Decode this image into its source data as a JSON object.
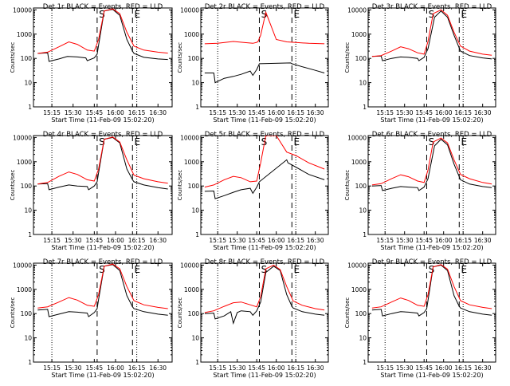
{
  "figure": {
    "xlabel": "Start Time (11-Feb-09 15:02:20)",
    "ylabel": "Counts/sec"
  },
  "colors": {
    "events": "#000000",
    "lld": "#ff0000",
    "axis": "#000000"
  },
  "chart_data": [
    {
      "type": "line",
      "title": "Det 1r BLACK = Events, RED = LLD",
      "xlabel": "Start Time (11-Feb-09 15:02:20)",
      "ylabel": "Counts/sec",
      "x_ticks": [
        "15:15",
        "15:30",
        "15:45",
        "16:00",
        "16:15",
        "16:30"
      ],
      "y_ticks": [
        "1",
        "10",
        "100",
        "1000",
        "10000"
      ],
      "ylim": [
        1,
        12000
      ],
      "log_y": true,
      "markers": [
        "S",
        "E"
      ],
      "series": [
        {
          "name": "Events",
          "x": [
            "15:05",
            "15:12",
            "15:13",
            "15:20",
            "15:26",
            "15:33",
            "15:39",
            "15:40",
            "15:45",
            "15:47",
            "15:48",
            "15:52",
            "15:58",
            "16:03",
            "16:08",
            "16:12",
            "16:13",
            "16:20",
            "16:30",
            "16:37"
          ],
          "y": [
            160,
            170,
            75,
            95,
            120,
            115,
            105,
            80,
            105,
            150,
            350,
            9000,
            10500,
            6000,
            600,
            200,
            160,
            110,
            95,
            90
          ]
        },
        {
          "name": "LLD",
          "x": [
            "15:05",
            "15:12",
            "15:20",
            "15:27",
            "15:33",
            "15:40",
            "15:45",
            "15:48",
            "15:52",
            "15:58",
            "16:03",
            "16:08",
            "16:13",
            "16:20",
            "16:30",
            "16:37"
          ],
          "y": [
            160,
            180,
            300,
            480,
            380,
            220,
            200,
            600,
            9000,
            11000,
            7000,
            1200,
            320,
            220,
            180,
            165
          ]
        }
      ]
    },
    {
      "type": "line",
      "title": "Det 2r BLACK = Events, RED = LLD",
      "xlabel": "Start Time (11-Feb-09 15:02:20)",
      "ylabel": "Counts/sec",
      "x_ticks": [
        "15:15",
        "15:30",
        "15:45",
        "16:00",
        "16:15",
        "16:30"
      ],
      "y_ticks": [
        "1",
        "10",
        "100",
        "1000",
        "10000"
      ],
      "ylim": [
        1,
        12000
      ],
      "log_y": true,
      "markers": [
        "S",
        "E"
      ],
      "series": [
        {
          "name": "Events",
          "x": [
            "15:05",
            "15:12",
            "15:13",
            "15:20",
            "15:27",
            "15:33",
            "15:40",
            "15:42",
            "15:45",
            "15:47",
            "16:11",
            "16:12",
            "16:20",
            "16:30",
            "16:37"
          ],
          "y": [
            25,
            25,
            10,
            15,
            18,
            22,
            30,
            20,
            35,
            60,
            65,
            60,
            45,
            32,
            25
          ]
        },
        {
          "name": "LLD",
          "x": [
            "15:05",
            "15:15",
            "15:27",
            "15:35",
            "15:42",
            "15:45",
            "15:46",
            "15:48",
            "15:52",
            "16:00",
            "16:08",
            "16:15",
            "16:25",
            "16:37"
          ],
          "y": [
            400,
            420,
            500,
            450,
            420,
            460,
            500,
            900,
            8000,
            600,
            480,
            450,
            420,
            400
          ]
        }
      ]
    },
    {
      "type": "line",
      "title": "Det 3r BLACK = Events, RED = LLD",
      "xlabel": "Start Time (11-Feb-09 15:02:20)",
      "ylabel": "Counts/sec",
      "x_ticks": [
        "15:15",
        "15:30",
        "15:45",
        "16:00",
        "16:15",
        "16:30"
      ],
      "y_ticks": [
        "1",
        "10",
        "100",
        "1000",
        "10000"
      ],
      "ylim": [
        1,
        12000
      ],
      "log_y": true,
      "markers": [
        "S",
        "E"
      ],
      "series": [
        {
          "name": "Events",
          "x": [
            "15:05",
            "15:12",
            "15:13",
            "15:20",
            "15:27",
            "15:33",
            "15:40",
            "15:41",
            "15:45",
            "15:48",
            "15:53",
            "15:58",
            "16:03",
            "16:08",
            "16:13",
            "16:20",
            "16:30",
            "16:37"
          ],
          "y": [
            120,
            125,
            80,
            100,
            115,
            110,
            100,
            80,
            110,
            250,
            5000,
            9000,
            5000,
            900,
            200,
            130,
            105,
            95
          ]
        },
        {
          "name": "LLD",
          "x": [
            "15:05",
            "15:12",
            "15:20",
            "15:27",
            "15:33",
            "15:40",
            "15:45",
            "15:48",
            "15:52",
            "15:58",
            "16:03",
            "16:08",
            "16:13",
            "16:20",
            "16:30",
            "16:37"
          ],
          "y": [
            120,
            130,
            200,
            300,
            250,
            170,
            150,
            500,
            7000,
            10000,
            6000,
            1200,
            320,
            200,
            150,
            135
          ]
        }
      ]
    },
    {
      "type": "line",
      "title": "Det 4r BLACK = Events, RED = LLD",
      "xlabel": "Start Time (11-Feb-09 15:02:20)",
      "ylabel": "Counts/sec",
      "x_ticks": [
        "15:15",
        "15:30",
        "15:45",
        "16:00",
        "16:15",
        "16:30"
      ],
      "y_ticks": [
        "1",
        "10",
        "100",
        "1000",
        "10000"
      ],
      "ylim": [
        1,
        12000
      ],
      "log_y": true,
      "markers": [
        "S",
        "E"
      ],
      "series": [
        {
          "name": "Events",
          "x": [
            "15:05",
            "15:12",
            "15:13",
            "15:20",
            "15:27",
            "15:33",
            "15:40",
            "15:41",
            "15:45",
            "15:47",
            "15:48",
            "15:52",
            "15:58",
            "16:03",
            "16:08",
            "16:12",
            "16:13",
            "16:20",
            "16:30",
            "16:37"
          ],
          "y": [
            120,
            125,
            70,
            90,
            110,
            100,
            95,
            70,
            100,
            150,
            350,
            8500,
            10000,
            6000,
            500,
            180,
            150,
            110,
            85,
            75
          ]
        },
        {
          "name": "LLD",
          "x": [
            "15:05",
            "15:12",
            "15:20",
            "15:27",
            "15:33",
            "15:40",
            "15:45",
            "15:48",
            "15:52",
            "15:58",
            "16:03",
            "16:08",
            "16:13",
            "16:20",
            "16:30",
            "16:37"
          ],
          "y": [
            120,
            140,
            250,
            380,
            300,
            180,
            160,
            500,
            8500,
            10500,
            6500,
            1200,
            280,
            200,
            150,
            130
          ]
        }
      ]
    },
    {
      "type": "line",
      "title": "Det 5r BLACK = Events, RED = LLD",
      "xlabel": "Start Time (11-Feb-09 15:02:20)",
      "ylabel": "Counts/sec",
      "x_ticks": [
        "15:15",
        "15:30",
        "15:45",
        "16:00",
        "16:15",
        "16:30"
      ],
      "y_ticks": [
        "1",
        "10",
        "100",
        "1000",
        "10000"
      ],
      "ylim": [
        1,
        12000
      ],
      "log_y": true,
      "markers": [
        "S",
        "E"
      ],
      "series": [
        {
          "name": "Events",
          "x": [
            "15:05",
            "15:12",
            "15:13",
            "15:20",
            "15:27",
            "15:33",
            "15:40",
            "15:42",
            "15:45",
            "15:47",
            "16:08",
            "16:09",
            "16:15",
            "16:25",
            "16:37"
          ],
          "y": [
            60,
            62,
            30,
            40,
            55,
            70,
            80,
            50,
            90,
            150,
            1200,
            900,
            600,
            300,
            180
          ]
        },
        {
          "name": "LLD",
          "x": [
            "15:05",
            "15:12",
            "15:20",
            "15:27",
            "15:33",
            "15:40",
            "15:45",
            "15:48",
            "15:52",
            "16:00",
            "16:08",
            "16:15",
            "16:25",
            "16:37"
          ],
          "y": [
            90,
            110,
            180,
            250,
            220,
            150,
            160,
            900,
            12000,
            12000,
            2500,
            1800,
            900,
            500
          ]
        }
      ]
    },
    {
      "type": "line",
      "title": "Det 6r BLACK = Events, RED = LLD",
      "xlabel": "Start Time (11-Feb-09 15:02:20)",
      "ylabel": "Counts/sec",
      "x_ticks": [
        "15:15",
        "15:30",
        "15:45",
        "16:00",
        "16:15",
        "16:30"
      ],
      "y_ticks": [
        "1",
        "10",
        "100",
        "1000",
        "10000"
      ],
      "ylim": [
        1,
        12000
      ],
      "log_y": true,
      "markers": [
        "S",
        "E"
      ],
      "series": [
        {
          "name": "Events",
          "x": [
            "15:05",
            "15:12",
            "15:13",
            "15:20",
            "15:27",
            "15:33",
            "15:40",
            "15:41",
            "15:45",
            "15:48",
            "15:53",
            "15:58",
            "16:03",
            "16:08",
            "16:13",
            "16:20",
            "16:30",
            "16:37"
          ],
          "y": [
            100,
            105,
            65,
            80,
            95,
            90,
            85,
            65,
            90,
            200,
            4500,
            8500,
            5000,
            800,
            180,
            120,
            95,
            85
          ]
        },
        {
          "name": "LLD",
          "x": [
            "15:05",
            "15:12",
            "15:20",
            "15:27",
            "15:33",
            "15:40",
            "15:45",
            "15:48",
            "15:52",
            "15:58",
            "16:03",
            "16:08",
            "16:13",
            "16:20",
            "16:30",
            "16:37"
          ],
          "y": [
            110,
            125,
            200,
            290,
            240,
            160,
            140,
            450,
            6500,
            9500,
            6000,
            1200,
            300,
            200,
            140,
            120
          ]
        }
      ]
    },
    {
      "type": "line",
      "title": "Det 7r BLACK = Events, RED = LLD",
      "xlabel": "Start Time (11-Feb-09 15:02:20)",
      "ylabel": "Counts/sec",
      "x_ticks": [
        "15:15",
        "15:30",
        "15:45",
        "16:00",
        "16:15",
        "16:30"
      ],
      "y_ticks": [
        "1",
        "10",
        "100",
        "1000",
        "10000"
      ],
      "ylim": [
        1,
        12000
      ],
      "log_y": true,
      "markers": [
        "S",
        "E"
      ],
      "series": [
        {
          "name": "Events",
          "x": [
            "15:05",
            "15:12",
            "15:13",
            "15:20",
            "15:27",
            "15:33",
            "15:40",
            "15:41",
            "15:45",
            "15:47",
            "15:48",
            "15:52",
            "15:58",
            "16:03",
            "16:08",
            "16:12",
            "16:13",
            "16:20",
            "16:30",
            "16:37"
          ],
          "y": [
            140,
            150,
            75,
            95,
            120,
            115,
            105,
            75,
            110,
            160,
            380,
            9000,
            10500,
            6000,
            550,
            190,
            160,
            120,
            95,
            85
          ]
        },
        {
          "name": "LLD",
          "x": [
            "15:05",
            "15:12",
            "15:20",
            "15:27",
            "15:33",
            "15:40",
            "15:45",
            "15:48",
            "15:52",
            "15:58",
            "16:03",
            "16:08",
            "16:13",
            "16:20",
            "16:30",
            "16:37"
          ],
          "y": [
            170,
            190,
            300,
            460,
            360,
            220,
            200,
            600,
            9000,
            11000,
            7000,
            1300,
            340,
            230,
            180,
            160
          ]
        }
      ]
    },
    {
      "type": "line",
      "title": "Det 8r BLACK = Events, RED = LLD",
      "xlabel": "Start Time (11-Feb-09 15:02:20)",
      "ylabel": "Counts/sec",
      "x_ticks": [
        "15:15",
        "15:30",
        "15:45",
        "16:00",
        "16:15",
        "16:30"
      ],
      "y_ticks": [
        "1",
        "10",
        "100",
        "1000",
        "10000"
      ],
      "ylim": [
        1,
        12000
      ],
      "log_y": true,
      "markers": [
        "S",
        "E"
      ],
      "series": [
        {
          "name": "Events",
          "x": [
            "15:05",
            "15:12",
            "15:13",
            "15:20",
            "15:25",
            "15:27",
            "15:30",
            "15:33",
            "15:40",
            "15:42",
            "15:45",
            "15:48",
            "15:52",
            "15:58",
            "16:03",
            "16:08",
            "16:12",
            "16:13",
            "16:20",
            "16:30",
            "16:37"
          ],
          "y": [
            100,
            105,
            60,
            80,
            120,
            40,
            110,
            130,
            120,
            85,
            130,
            300,
            5000,
            9000,
            6000,
            600,
            200,
            170,
            120,
            95,
            85
          ]
        },
        {
          "name": "LLD",
          "x": [
            "15:05",
            "15:12",
            "15:20",
            "15:27",
            "15:33",
            "15:40",
            "15:45",
            "15:48",
            "15:52",
            "15:58",
            "16:03",
            "16:08",
            "16:13",
            "16:20",
            "16:30",
            "16:37"
          ],
          "y": [
            110,
            130,
            200,
            280,
            300,
            230,
            190,
            500,
            7000,
            10000,
            6500,
            1300,
            330,
            220,
            160,
            140
          ]
        }
      ]
    },
    {
      "type": "line",
      "title": "Det 9r BLACK = Events, RED = LLD",
      "xlabel": "Start Time (11-Feb-09 15:02:20)",
      "ylabel": "Counts/sec",
      "x_ticks": [
        "15:15",
        "15:30",
        "15:45",
        "16:00",
        "16:15",
        "16:30"
      ],
      "y_ticks": [
        "1",
        "10",
        "100",
        "1000",
        "10000"
      ],
      "ylim": [
        1,
        12000
      ],
      "log_y": true,
      "markers": [
        "S",
        "E"
      ],
      "series": [
        {
          "name": "Events",
          "x": [
            "15:05",
            "15:12",
            "15:13",
            "15:20",
            "15:27",
            "15:33",
            "15:40",
            "15:41",
            "15:45",
            "15:47",
            "15:48",
            "15:52",
            "15:58",
            "16:03",
            "16:08",
            "16:12",
            "16:13",
            "16:20",
            "16:30",
            "16:37"
          ],
          "y": [
            140,
            150,
            80,
            100,
            120,
            115,
            105,
            80,
            110,
            160,
            350,
            8500,
            10000,
            6000,
            550,
            200,
            170,
            120,
            95,
            85
          ]
        },
        {
          "name": "LLD",
          "x": [
            "15:05",
            "15:12",
            "15:20",
            "15:27",
            "15:33",
            "15:40",
            "15:45",
            "15:48",
            "15:52",
            "15:58",
            "16:03",
            "16:08",
            "16:13",
            "16:20",
            "16:30",
            "16:37"
          ],
          "y": [
            170,
            190,
            300,
            440,
            350,
            220,
            200,
            600,
            8500,
            10500,
            6800,
            1300,
            340,
            230,
            180,
            160
          ]
        }
      ]
    }
  ]
}
